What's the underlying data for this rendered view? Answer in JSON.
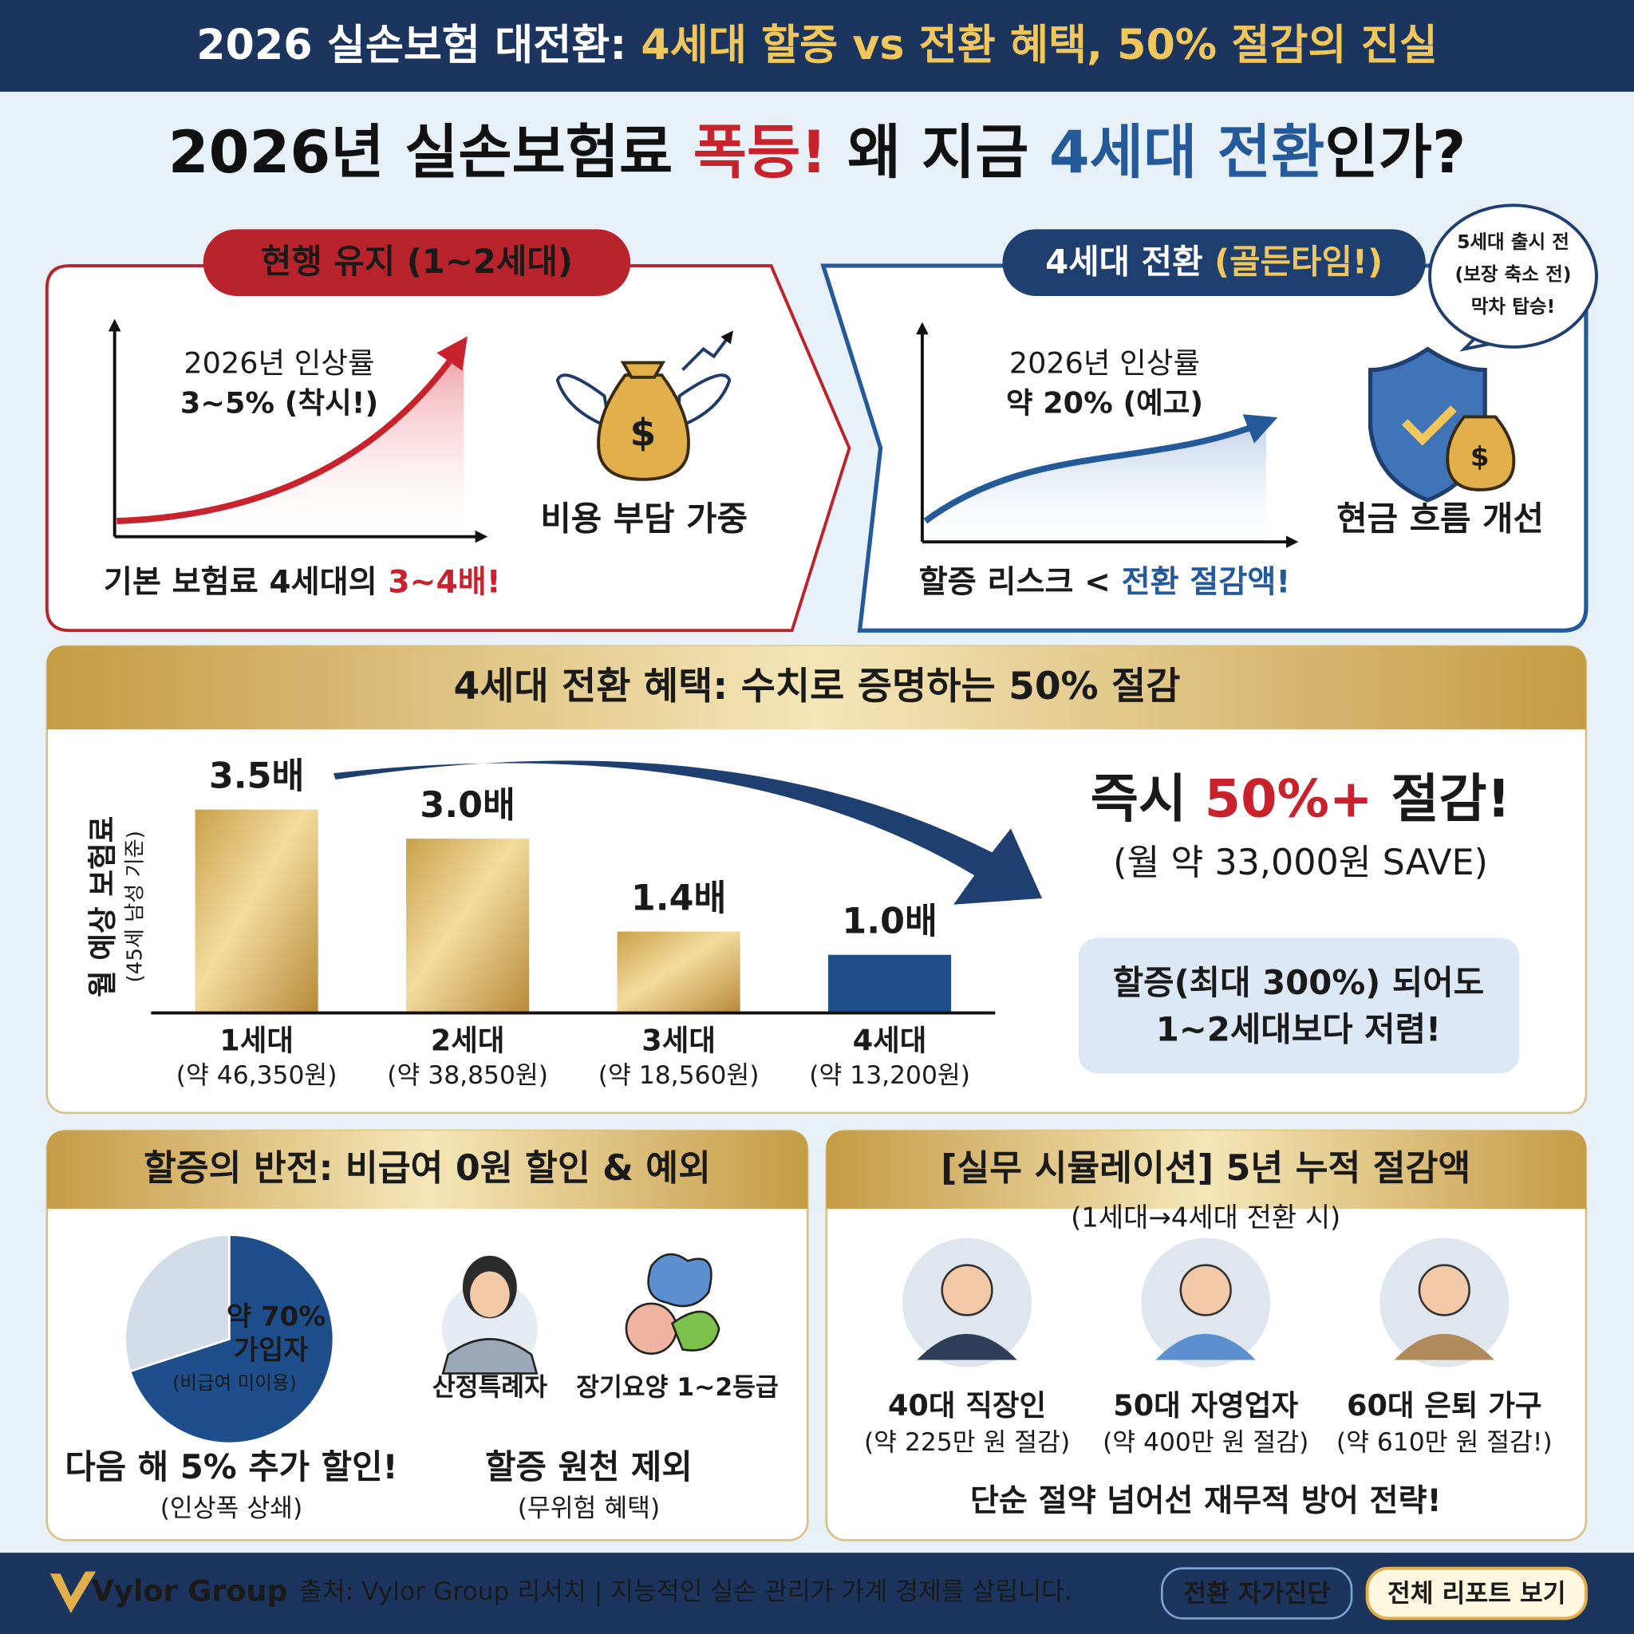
{
  "header": {
    "title_parts": [
      "2026 실손보험 대전환: ",
      "4세대 할증 vs 전환 혜택, 50% 절감의 진실"
    ]
  },
  "headline": {
    "parts": [
      "2026년 실손보험료 ",
      "폭등!",
      " 왜 지금 ",
      "4세대 전환",
      "인가?"
    ]
  },
  "left_panel": {
    "tab": "현행 유지 (1~2세대)",
    "chart_label": "2026년 인상률",
    "chart_value": "3~5% (착시!)",
    "icon_label": "비용 부담 가중",
    "footer_parts": [
      "기본 보험료 4세대의 ",
      "3~4배!"
    ]
  },
  "right_panel": {
    "tab_parts": [
      "4세대 전환 ",
      "(골든타임!)"
    ],
    "bubble": [
      "5세대 출시 전",
      "(보장 축소 전)",
      "막차 탑승!"
    ],
    "chart_label": "2026년 인상률",
    "chart_value": "약 20% (예고)",
    "icon_label": "현금 흐름 개선",
    "footer_parts": [
      "할증 리스크 < ",
      "전환 절감액!"
    ]
  },
  "chart_data": [
    {
      "type": "bar",
      "title": "4세대 전환 혜택: 수치로 증명하는 50% 절감",
      "y_label": "월 예상 보험료",
      "y_sublabel": "(45세 남성 기준)",
      "categories": [
        "1세대",
        "2세대",
        "3세대",
        "4세대"
      ],
      "category_sublabels": [
        "(약 46,350원)",
        "(약 38,850원)",
        "(약 18,560원)",
        "(약 13,200원)"
      ],
      "values": [
        3.5,
        3.0,
        1.4,
        1.0
      ],
      "value_labels": [
        "3.5배",
        "3.0배",
        "1.4배",
        "1.0배"
      ],
      "colors": [
        "gold",
        "gold",
        "gold",
        "#1f4e8c"
      ],
      "ylim": [
        0,
        4
      ]
    },
    {
      "type": "pie",
      "categories": [
        "가입자",
        null
      ],
      "category_sublabels": [
        "(비급여 미이용)",
        null
      ],
      "values": [
        70,
        30
      ],
      "value_labels": [
        "약 70%",
        null
      ],
      "colors": [
        "#1f4e8c",
        "#d3dce8"
      ]
    }
  ],
  "savings_callout": {
    "headline_parts": [
      "즉시 ",
      "50%+",
      " 절감!"
    ],
    "sub": "(월 약 33,000원 SAVE)",
    "box_lines": [
      "할증(최대 300%) 되어도",
      "1~2세대보다 저렴!"
    ]
  },
  "surcharge": {
    "title": "할증의 반전: 비급여 0원 할인 & 예외",
    "discount": "다음 해 5% 추가 할인!",
    "discount_sub": "(인상폭 상쇄)",
    "exceptions": [
      "산정특례자",
      "장기요양 1~2등급"
    ],
    "exception_title": "할증 원천 제외",
    "exception_sub": "(무위험 혜택)"
  },
  "simulation": {
    "title": "[실무 시뮬레이션] 5년 누적 절감액",
    "subtitle": "(1세대→4세대 전환 시)",
    "personas": [
      {
        "name": "40대 직장인",
        "saving": "(약 225만 원 절감)"
      },
      {
        "name": "50대 자영업자",
        "saving": "(약 400만 원 절감)"
      },
      {
        "name": "60대 은퇴 가구",
        "saving": "(약 610만 원 절감!)"
      }
    ],
    "footer": "단순 절약 넘어선 재무적 방어 전략!"
  },
  "footer": {
    "brand": "Vylor Group",
    "source": "출처: Vylor Group 리서치 | 지능적인 실손 관리가 가계 경제를 살립니다.",
    "buttons": [
      "전환 자가진단",
      "전체 리포트 보기"
    ]
  }
}
